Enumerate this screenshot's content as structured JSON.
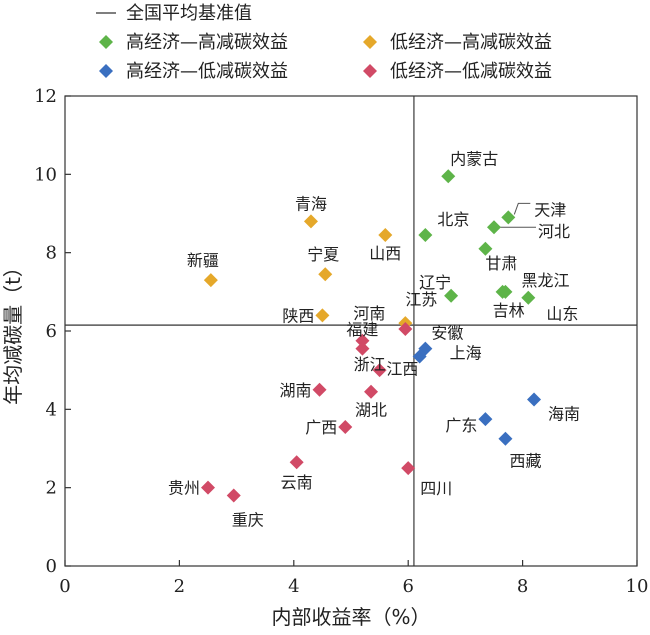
{
  "chart_data": {
    "type": "scatter",
    "xlabel": "内部收益率（%）",
    "ylabel": "年均减碳量（t）",
    "xlim": [
      0,
      10
    ],
    "ylim": [
      0,
      12
    ],
    "xticks": [
      0,
      2,
      4,
      6,
      8,
      10
    ],
    "yticks": [
      0,
      2,
      4,
      6,
      8,
      10,
      12
    ],
    "grid": false,
    "legend_position": "top",
    "baseline": {
      "name": "全国平均基准值",
      "x": 6.1,
      "y": 6.15,
      "color": "#555555"
    },
    "series": [
      {
        "name": "高经济—高减碳效益",
        "color": "#5eb449",
        "points": [
          {
            "label": "内蒙古",
            "x": 6.7,
            "y": 9.95
          },
          {
            "label": "天津",
            "x": 7.75,
            "y": 8.9
          },
          {
            "label": "河北",
            "x": 7.5,
            "y": 8.65
          },
          {
            "label": "北京",
            "x": 6.3,
            "y": 8.45
          },
          {
            "label": "甘肃",
            "x": 7.35,
            "y": 8.1
          },
          {
            "label": "黑龙江",
            "x": 7.7,
            "y": 7.0
          },
          {
            "label": "吉林",
            "x": 7.65,
            "y": 7.0
          },
          {
            "label": "辽宁",
            "x": 6.75,
            "y": 6.9
          },
          {
            "label": "山东",
            "x": 8.1,
            "y": 6.85
          }
        ]
      },
      {
        "name": "低经济—高减碳效益",
        "color": "#e5a82a",
        "points": [
          {
            "label": "青海",
            "x": 4.3,
            "y": 8.8
          },
          {
            "label": "山西",
            "x": 5.6,
            "y": 8.45
          },
          {
            "label": "宁夏",
            "x": 4.55,
            "y": 7.45
          },
          {
            "label": "新疆",
            "x": 2.55,
            "y": 7.3
          },
          {
            "label": "陕西",
            "x": 4.5,
            "y": 6.4
          },
          {
            "label": "江苏",
            "x": 5.95,
            "y": 6.2
          }
        ]
      },
      {
        "name": "高经济—低减碳效益",
        "color": "#3a6fc0",
        "points": [
          {
            "label": "安徽",
            "x": 6.3,
            "y": 5.55
          },
          {
            "label": "上海",
            "x": 6.2,
            "y": 5.35
          },
          {
            "label": "海南",
            "x": 8.2,
            "y": 4.25
          },
          {
            "label": "广东",
            "x": 7.35,
            "y": 3.75
          },
          {
            "label": "西藏",
            "x": 7.7,
            "y": 3.25
          }
        ]
      },
      {
        "name": "低经济—低减碳效益",
        "color": "#d14a66",
        "points": [
          {
            "label": "河南",
            "x": 5.95,
            "y": 6.05
          },
          {
            "label": "福建",
            "x": 5.2,
            "y": 5.75
          },
          {
            "label": "江西",
            "x": 5.2,
            "y": 5.55
          },
          {
            "label": "浙江",
            "x": 5.5,
            "y": 5.0
          },
          {
            "label": "湖南",
            "x": 4.45,
            "y": 4.5
          },
          {
            "label": "湖北",
            "x": 5.35,
            "y": 4.45
          },
          {
            "label": "广西",
            "x": 4.9,
            "y": 3.55
          },
          {
            "label": "云南",
            "x": 4.05,
            "y": 2.65
          },
          {
            "label": "四川",
            "x": 6.0,
            "y": 2.5
          },
          {
            "label": "贵州",
            "x": 2.5,
            "y": 2.0
          },
          {
            "label": "重庆",
            "x": 2.95,
            "y": 1.8
          }
        ]
      }
    ]
  }
}
